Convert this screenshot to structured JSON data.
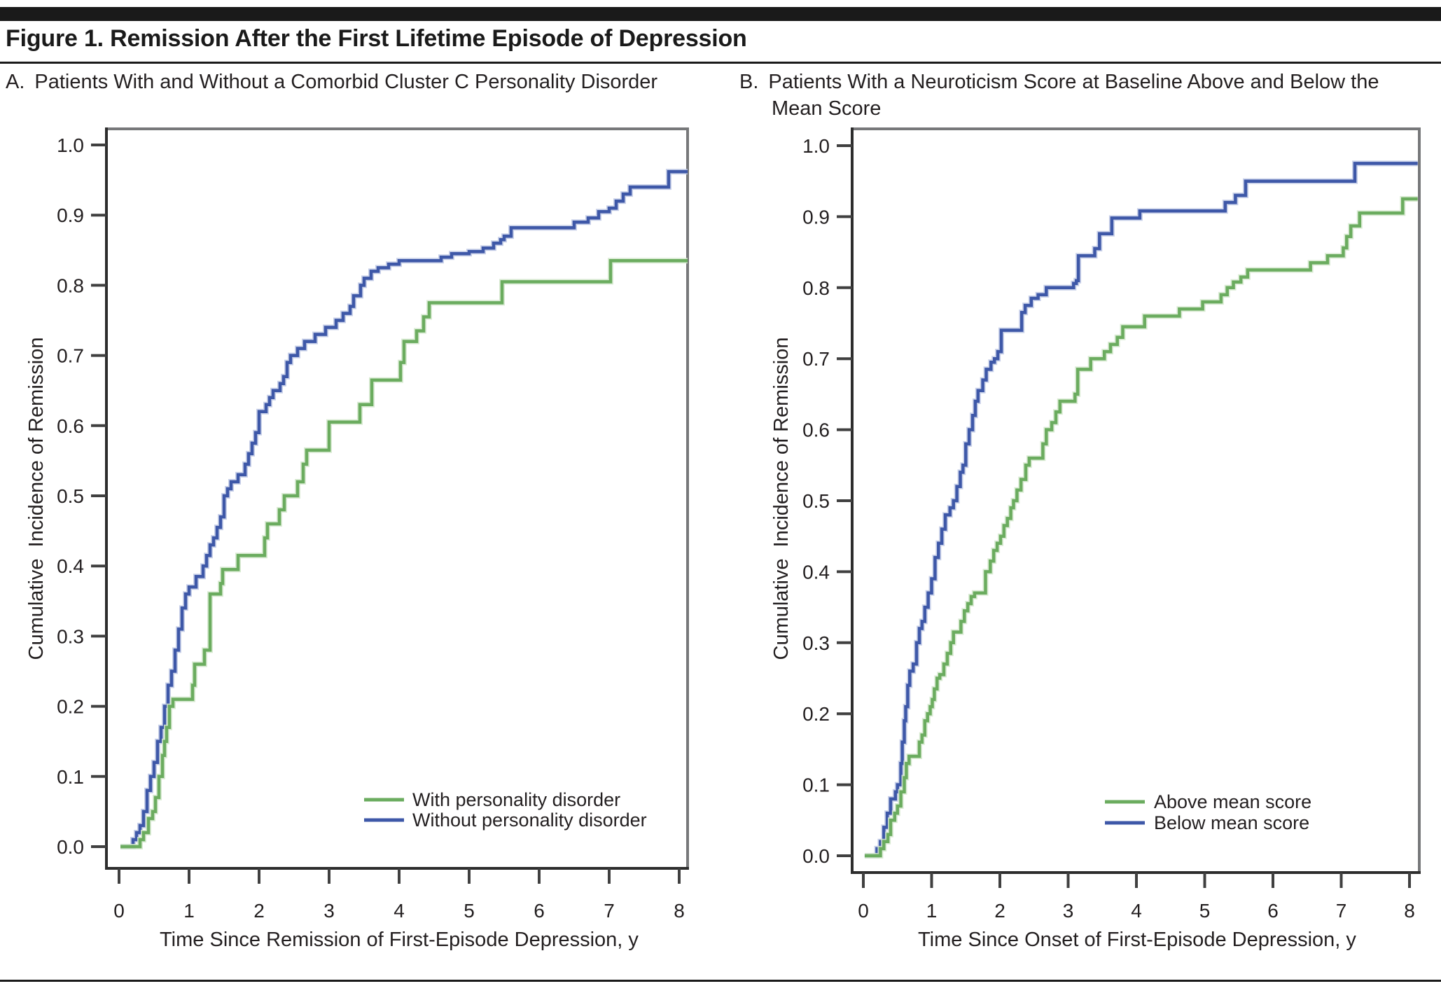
{
  "figure_title": "Figure 1. Remission After the First Lifetime Episode of Depression",
  "chart_data": [
    {
      "type": "line",
      "style": "kaplan-meier-step",
      "panel_label": "A.",
      "title": "Patients With and Without a Comorbid Cluster C Personality Disorder",
      "xlabel": "Time Since Remission of First-Episode Depression, y",
      "ylabel": "Cumulative  Incidence of Remission",
      "xlim": [
        0,
        8.12
      ],
      "ylim": [
        0,
        1.0
      ],
      "x_ticks": [
        0,
        1,
        2,
        3,
        4,
        5,
        6,
        7,
        8
      ],
      "y_ticks": [
        0.0,
        0.1,
        0.2,
        0.3,
        0.4,
        0.5,
        0.6,
        0.7,
        0.8,
        0.9,
        1.0
      ],
      "grid": false,
      "legend_position": "inside-bottom-right",
      "series": [
        {
          "name": "With personality disorder",
          "color": "#6BAC5F",
          "end_x": 8.12,
          "steps": [
            [
              0.22,
              0.0
            ],
            [
              0.3,
              0.01
            ],
            [
              0.35,
              0.02
            ],
            [
              0.42,
              0.04
            ],
            [
              0.48,
              0.05
            ],
            [
              0.52,
              0.07
            ],
            [
              0.57,
              0.1
            ],
            [
              0.62,
              0.13
            ],
            [
              0.65,
              0.15
            ],
            [
              0.68,
              0.17
            ],
            [
              0.72,
              0.2
            ],
            [
              0.77,
              0.21
            ],
            [
              1.05,
              0.23
            ],
            [
              1.08,
              0.26
            ],
            [
              1.22,
              0.28
            ],
            [
              1.3,
              0.36
            ],
            [
              1.45,
              0.375
            ],
            [
              1.48,
              0.395
            ],
            [
              1.7,
              0.415
            ],
            [
              2.08,
              0.44
            ],
            [
              2.12,
              0.46
            ],
            [
              2.29,
              0.48
            ],
            [
              2.36,
              0.5
            ],
            [
              2.55,
              0.52
            ],
            [
              2.63,
              0.545
            ],
            [
              2.68,
              0.565
            ],
            [
              3.0,
              0.605
            ],
            [
              3.44,
              0.63
            ],
            [
              3.61,
              0.665
            ],
            [
              4.02,
              0.69
            ],
            [
              4.07,
              0.72
            ],
            [
              4.25,
              0.735
            ],
            [
              4.35,
              0.755
            ],
            [
              4.43,
              0.775
            ],
            [
              5.47,
              0.805
            ],
            [
              7.02,
              0.835
            ]
          ]
        },
        {
          "name": "Without personality disorder",
          "color": "#3E58A8",
          "end_x": 8.12,
          "steps": [
            [
              0.13,
              0.0
            ],
            [
              0.2,
              0.01
            ],
            [
              0.25,
              0.02
            ],
            [
              0.3,
              0.03
            ],
            [
              0.35,
              0.05
            ],
            [
              0.4,
              0.08
            ],
            [
              0.45,
              0.1
            ],
            [
              0.5,
              0.12
            ],
            [
              0.55,
              0.15
            ],
            [
              0.6,
              0.17
            ],
            [
              0.65,
              0.2
            ],
            [
              0.7,
              0.23
            ],
            [
              0.75,
              0.25
            ],
            [
              0.8,
              0.28
            ],
            [
              0.85,
              0.31
            ],
            [
              0.9,
              0.34
            ],
            [
              0.95,
              0.36
            ],
            [
              1.0,
              0.37
            ],
            [
              1.1,
              0.385
            ],
            [
              1.2,
              0.4
            ],
            [
              1.25,
              0.415
            ],
            [
              1.3,
              0.43
            ],
            [
              1.35,
              0.44
            ],
            [
              1.4,
              0.455
            ],
            [
              1.45,
              0.47
            ],
            [
              1.5,
              0.5
            ],
            [
              1.55,
              0.51
            ],
            [
              1.6,
              0.52
            ],
            [
              1.7,
              0.53
            ],
            [
              1.8,
              0.545
            ],
            [
              1.85,
              0.56
            ],
            [
              1.9,
              0.575
            ],
            [
              1.95,
              0.59
            ],
            [
              2.0,
              0.62
            ],
            [
              2.1,
              0.63
            ],
            [
              2.15,
              0.64
            ],
            [
              2.2,
              0.65
            ],
            [
              2.3,
              0.66
            ],
            [
              2.35,
              0.67
            ],
            [
              2.4,
              0.69
            ],
            [
              2.45,
              0.7
            ],
            [
              2.55,
              0.71
            ],
            [
              2.65,
              0.72
            ],
            [
              2.8,
              0.73
            ],
            [
              2.95,
              0.74
            ],
            [
              3.1,
              0.75
            ],
            [
              3.2,
              0.76
            ],
            [
              3.3,
              0.77
            ],
            [
              3.35,
              0.785
            ],
            [
              3.45,
              0.8
            ],
            [
              3.5,
              0.81
            ],
            [
              3.6,
              0.82
            ],
            [
              3.7,
              0.825
            ],
            [
              3.85,
              0.83
            ],
            [
              4.0,
              0.835
            ],
            [
              4.6,
              0.84
            ],
            [
              4.75,
              0.845
            ],
            [
              5.0,
              0.848
            ],
            [
              5.2,
              0.853
            ],
            [
              5.35,
              0.86
            ],
            [
              5.45,
              0.865
            ],
            [
              5.5,
              0.87
            ],
            [
              5.6,
              0.882
            ],
            [
              6.5,
              0.89
            ],
            [
              6.7,
              0.896
            ],
            [
              6.85,
              0.905
            ],
            [
              7.0,
              0.91
            ],
            [
              7.1,
              0.92
            ],
            [
              7.2,
              0.93
            ],
            [
              7.3,
              0.94
            ],
            [
              7.85,
              0.962
            ]
          ]
        }
      ]
    },
    {
      "type": "line",
      "style": "kaplan-meier-step",
      "panel_label": "B.",
      "title": "Patients With a Neuroticism Score at Baseline Above and Below the Mean Score",
      "xlabel": "Time Since Onset of First-Episode Depression, y",
      "ylabel": "Cumulative  Incidence of Remission",
      "xlim": [
        0,
        8.12
      ],
      "ylim": [
        0,
        1.0
      ],
      "x_ticks": [
        0,
        1,
        2,
        3,
        4,
        5,
        6,
        7,
        8
      ],
      "y_ticks": [
        0.0,
        0.1,
        0.2,
        0.3,
        0.4,
        0.5,
        0.6,
        0.7,
        0.8,
        0.9,
        1.0
      ],
      "grid": false,
      "legend_position": "inside-bottom-right",
      "series": [
        {
          "name": "Above mean score",
          "color": "#6BAC5F",
          "end_x": 8.12,
          "steps": [
            [
              0.17,
              0.0
            ],
            [
              0.25,
              0.01
            ],
            [
              0.3,
              0.02
            ],
            [
              0.36,
              0.03
            ],
            [
              0.4,
              0.05
            ],
            [
              0.46,
              0.06
            ],
            [
              0.5,
              0.07
            ],
            [
              0.55,
              0.09
            ],
            [
              0.6,
              0.11
            ],
            [
              0.63,
              0.13
            ],
            [
              0.67,
              0.14
            ],
            [
              0.82,
              0.16
            ],
            [
              0.86,
              0.17
            ],
            [
              0.9,
              0.19
            ],
            [
              0.94,
              0.2
            ],
            [
              0.98,
              0.21
            ],
            [
              1.01,
              0.22
            ],
            [
              1.04,
              0.235
            ],
            [
              1.08,
              0.25
            ],
            [
              1.12,
              0.255
            ],
            [
              1.18,
              0.27
            ],
            [
              1.23,
              0.285
            ],
            [
              1.28,
              0.3
            ],
            [
              1.32,
              0.315
            ],
            [
              1.43,
              0.33
            ],
            [
              1.48,
              0.345
            ],
            [
              1.53,
              0.355
            ],
            [
              1.58,
              0.365
            ],
            [
              1.63,
              0.37
            ],
            [
              1.79,
              0.4
            ],
            [
              1.86,
              0.415
            ],
            [
              1.91,
              0.43
            ],
            [
              1.96,
              0.44
            ],
            [
              2.01,
              0.45
            ],
            [
              2.06,
              0.465
            ],
            [
              2.11,
              0.475
            ],
            [
              2.16,
              0.49
            ],
            [
              2.2,
              0.5
            ],
            [
              2.25,
              0.515
            ],
            [
              2.31,
              0.53
            ],
            [
              2.38,
              0.55
            ],
            [
              2.43,
              0.56
            ],
            [
              2.63,
              0.58
            ],
            [
              2.68,
              0.6
            ],
            [
              2.76,
              0.61
            ],
            [
              2.82,
              0.625
            ],
            [
              2.88,
              0.64
            ],
            [
              3.1,
              0.65
            ],
            [
              3.14,
              0.685
            ],
            [
              3.33,
              0.7
            ],
            [
              3.53,
              0.71
            ],
            [
              3.62,
              0.72
            ],
            [
              3.72,
              0.73
            ],
            [
              3.8,
              0.745
            ],
            [
              4.12,
              0.76
            ],
            [
              4.63,
              0.77
            ],
            [
              4.97,
              0.78
            ],
            [
              5.24,
              0.79
            ],
            [
              5.33,
              0.8
            ],
            [
              5.42,
              0.808
            ],
            [
              5.53,
              0.815
            ],
            [
              5.63,
              0.825
            ],
            [
              6.55,
              0.835
            ],
            [
              6.8,
              0.845
            ],
            [
              7.03,
              0.856
            ],
            [
              7.08,
              0.872
            ],
            [
              7.14,
              0.887
            ],
            [
              7.27,
              0.905
            ],
            [
              7.9,
              0.925
            ]
          ]
        },
        {
          "name": "Below mean score",
          "color": "#3E58A8",
          "end_x": 8.12,
          "steps": [
            [
              0.13,
              0.0
            ],
            [
              0.2,
              0.01
            ],
            [
              0.25,
              0.02
            ],
            [
              0.3,
              0.04
            ],
            [
              0.35,
              0.06
            ],
            [
              0.4,
              0.08
            ],
            [
              0.47,
              0.09
            ],
            [
              0.5,
              0.1
            ],
            [
              0.55,
              0.13
            ],
            [
              0.57,
              0.16
            ],
            [
              0.6,
              0.19
            ],
            [
              0.62,
              0.21
            ],
            [
              0.65,
              0.24
            ],
            [
              0.68,
              0.26
            ],
            [
              0.73,
              0.27
            ],
            [
              0.78,
              0.3
            ],
            [
              0.82,
              0.32
            ],
            [
              0.86,
              0.33
            ],
            [
              0.9,
              0.35
            ],
            [
              0.95,
              0.37
            ],
            [
              1.0,
              0.39
            ],
            [
              1.05,
              0.42
            ],
            [
              1.1,
              0.44
            ],
            [
              1.15,
              0.46
            ],
            [
              1.2,
              0.48
            ],
            [
              1.27,
              0.49
            ],
            [
              1.32,
              0.5
            ],
            [
              1.37,
              0.52
            ],
            [
              1.42,
              0.54
            ],
            [
              1.46,
              0.55
            ],
            [
              1.5,
              0.58
            ],
            [
              1.55,
              0.6
            ],
            [
              1.6,
              0.62
            ],
            [
              1.64,
              0.64
            ],
            [
              1.68,
              0.655
            ],
            [
              1.75,
              0.67
            ],
            [
              1.8,
              0.685
            ],
            [
              1.87,
              0.695
            ],
            [
              1.92,
              0.7
            ],
            [
              1.97,
              0.71
            ],
            [
              2.02,
              0.74
            ],
            [
              2.32,
              0.765
            ],
            [
              2.37,
              0.775
            ],
            [
              2.46,
              0.785
            ],
            [
              2.56,
              0.79
            ],
            [
              2.68,
              0.8
            ],
            [
              3.08,
              0.806
            ],
            [
              3.12,
              0.81
            ],
            [
              3.15,
              0.845
            ],
            [
              3.39,
              0.855
            ],
            [
              3.46,
              0.876
            ],
            [
              3.64,
              0.898
            ],
            [
              4.05,
              0.908
            ],
            [
              5.3,
              0.92
            ],
            [
              5.45,
              0.93
            ],
            [
              5.6,
              0.95
            ],
            [
              7.2,
              0.975
            ]
          ]
        }
      ]
    }
  ],
  "colors": {
    "green_series": "#6BAC5F",
    "blue_series": "#3E58A8",
    "frame_gray": "#77787A",
    "axis_black": "#2D2D2D",
    "text": "#231F20",
    "rule_black": "#1A1A1A"
  }
}
